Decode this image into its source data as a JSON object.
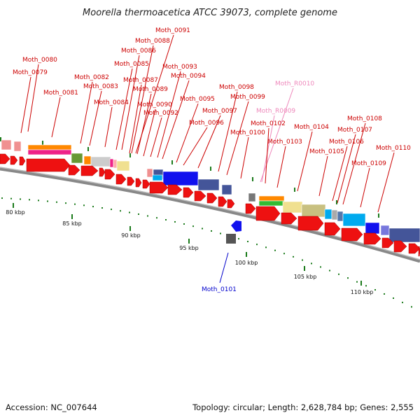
{
  "title": "Moorella thermoacetica ATCC 39073, complete genome",
  "footer": {
    "accession": "Accession: NC_007644",
    "summary": "Topology: circular; Length: 2,628,784 bp; Genes: 2,555"
  },
  "colors": {
    "gene_label": "#cc0000",
    "rna_label": "#ee88bb",
    "reverse_label": "#0000cc",
    "forward_gene": "#ee1111",
    "reverse_gene": "#1111ee",
    "rna_gene": "#cc8899",
    "tick": "#1a7a1a",
    "backbone": "#888888"
  },
  "scale_ticks": [
    "80 kbp",
    "85 kbp",
    "90 kbp",
    "95 kbp",
    "100 kbp",
    "105 kbp",
    "110 kbp"
  ],
  "gene_labels": [
    {
      "text": "Moth_0079",
      "kind": "gene"
    },
    {
      "text": "Moth_0080",
      "kind": "gene"
    },
    {
      "text": "Moth_0081",
      "kind": "gene"
    },
    {
      "text": "Moth_0082",
      "kind": "gene"
    },
    {
      "text": "Moth_0083",
      "kind": "gene"
    },
    {
      "text": "Moth_0084",
      "kind": "gene"
    },
    {
      "text": "Moth_0085",
      "kind": "gene"
    },
    {
      "text": "Moth_0086",
      "kind": "gene"
    },
    {
      "text": "Moth_0087",
      "kind": "gene"
    },
    {
      "text": "Moth_0088",
      "kind": "gene"
    },
    {
      "text": "Moth_0089",
      "kind": "gene"
    },
    {
      "text": "Moth_0090",
      "kind": "gene"
    },
    {
      "text": "Moth_0091",
      "kind": "gene"
    },
    {
      "text": "Moth_0092",
      "kind": "gene"
    },
    {
      "text": "Moth_0093",
      "kind": "gene"
    },
    {
      "text": "Moth_0094",
      "kind": "gene"
    },
    {
      "text": "Moth_0095",
      "kind": "gene"
    },
    {
      "text": "Moth_0096",
      "kind": "gene"
    },
    {
      "text": "Moth_0097",
      "kind": "gene"
    },
    {
      "text": "Moth_0098",
      "kind": "gene"
    },
    {
      "text": "Moth_0099",
      "kind": "gene"
    },
    {
      "text": "Moth_0100",
      "kind": "gene"
    },
    {
      "text": "Moth_R0010",
      "kind": "rna"
    },
    {
      "text": "Moth_R0009",
      "kind": "rna"
    },
    {
      "text": "Moth_0102",
      "kind": "gene"
    },
    {
      "text": "Moth_0103",
      "kind": "gene"
    },
    {
      "text": "Moth_0104",
      "kind": "gene"
    },
    {
      "text": "Moth_0105",
      "kind": "gene"
    },
    {
      "text": "Moth_0106",
      "kind": "gene"
    },
    {
      "text": "Moth_0107",
      "kind": "gene"
    },
    {
      "text": "Moth_0108",
      "kind": "gene"
    },
    {
      "text": "Moth_0109",
      "kind": "gene"
    },
    {
      "text": "Moth_0110",
      "kind": "gene"
    },
    {
      "text": "Moth_0101",
      "kind": "reverse"
    }
  ]
}
